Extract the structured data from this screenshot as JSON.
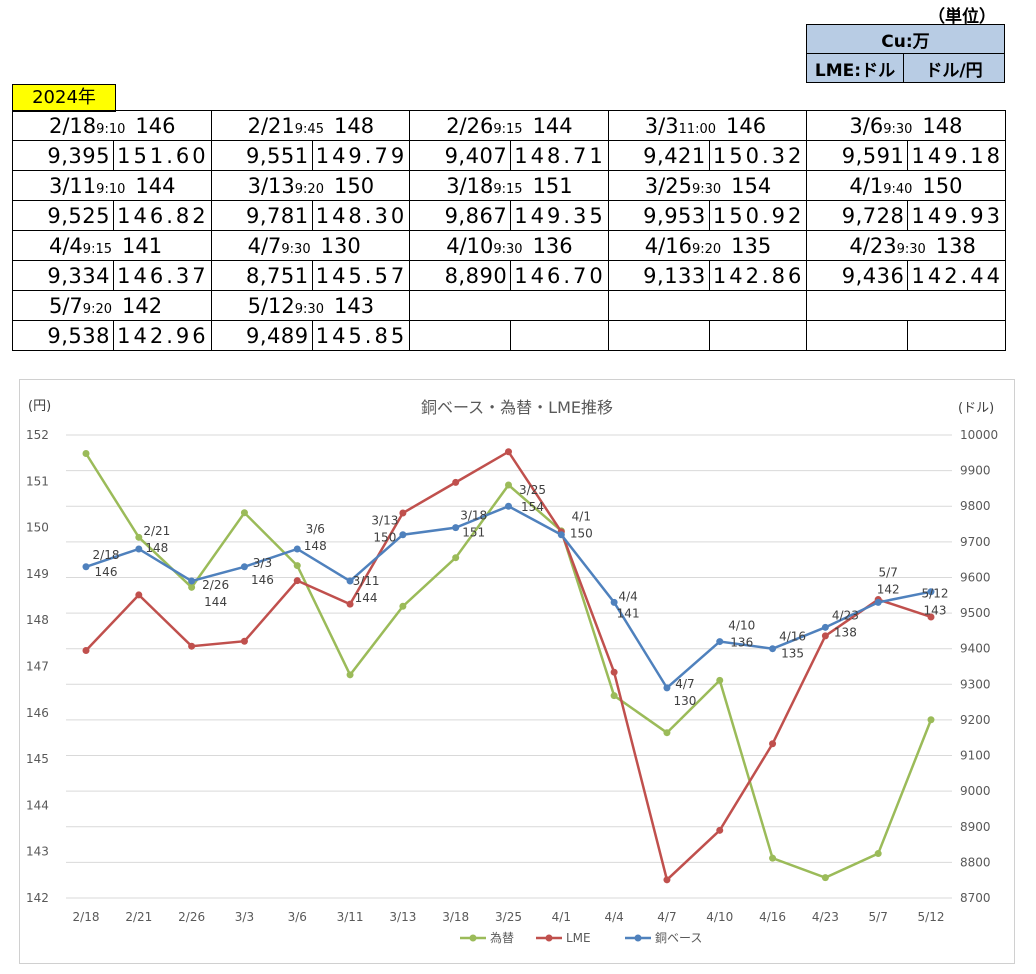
{
  "header": {
    "unit_label": "（単位）",
    "unit_top": "Cu:万",
    "unit_left": "LME:ドル",
    "unit_right": "ドル/円"
  },
  "year_label": "2024年",
  "rows": [
    [
      {
        "date": "2/18",
        "time": "9:10",
        "base": "146",
        "lme": "9,395",
        "fx": "151.60"
      },
      {
        "date": "2/21",
        "time": "9:45",
        "base": "148",
        "lme": "9,551",
        "fx": "149.79"
      },
      {
        "date": "2/26",
        "time": "9:15",
        "base": "144",
        "lme": "9,407",
        "fx": "148.71"
      },
      {
        "date": "3/3",
        "time": "11:00",
        "base": "146",
        "lme": "9,421",
        "fx": "150.32"
      },
      {
        "date": "3/6",
        "time": "9:30",
        "base": "148",
        "lme": "9,591",
        "fx": "149.18"
      }
    ],
    [
      {
        "date": "3/11",
        "time": "9:10",
        "base": "144",
        "lme": "9,525",
        "fx": "146.82"
      },
      {
        "date": "3/13",
        "time": "9:20",
        "base": "150",
        "lme": "9,781",
        "fx": "148.30"
      },
      {
        "date": "3/18",
        "time": "9:15",
        "base": "151",
        "lme": "9,867",
        "fx": "149.35"
      },
      {
        "date": "3/25",
        "time": "9:30",
        "base": "154",
        "lme": "9,953",
        "fx": "150.92"
      },
      {
        "date": "4/1",
        "time": "9:40",
        "base": "150",
        "lme": "9,728",
        "fx": "149.93"
      }
    ],
    [
      {
        "date": "4/4",
        "time": "9:15",
        "base": "141",
        "lme": "9,334",
        "fx": "146.37"
      },
      {
        "date": "4/7",
        "time": "9:30",
        "base": "130",
        "lme": "8,751",
        "fx": "145.57"
      },
      {
        "date": "4/10",
        "time": "9:30",
        "base": "136",
        "lme": "8,890",
        "fx": "146.70"
      },
      {
        "date": "4/16",
        "time": "9:20",
        "base": "135",
        "lme": "9,133",
        "fx": "142.86"
      },
      {
        "date": "4/23",
        "time": "9:30",
        "base": "138",
        "lme": "9,436",
        "fx": "142.44"
      }
    ],
    [
      {
        "date": "5/7",
        "time": "9:20",
        "base": "142",
        "lme": "9,538",
        "fx": "142.96"
      },
      {
        "date": "5/12",
        "time": "9:30",
        "base": "143",
        "lme": "9,489",
        "fx": "145.85"
      },
      {
        "date": "",
        "time": "",
        "base": "",
        "lme": "",
        "fx": ""
      },
      {
        "date": "",
        "time": "",
        "base": "",
        "lme": "",
        "fx": ""
      },
      {
        "date": "",
        "time": "",
        "base": "",
        "lme": "",
        "fx": ""
      }
    ]
  ],
  "chart_data": {
    "type": "line",
    "title": "銅ベース・為替・LME推移",
    "left_axis_label": "(円)",
    "right_axis_label": "(ドル)",
    "categories": [
      "2/18",
      "2/21",
      "2/26",
      "3/3",
      "3/6",
      "3/11",
      "3/13",
      "3/18",
      "3/25",
      "4/1",
      "4/4",
      "4/7",
      "4/10",
      "4/16",
      "4/23",
      "5/7",
      "5/12"
    ],
    "left_axis": {
      "min": 142,
      "max": 152,
      "ticks": [
        142,
        143,
        144,
        145,
        146,
        147,
        148,
        149,
        150,
        151,
        152
      ]
    },
    "right_axis": {
      "min": 8700,
      "max": 10000,
      "ticks": [
        8700,
        8800,
        8900,
        9000,
        9100,
        9200,
        9300,
        9400,
        9500,
        9600,
        9700,
        9800,
        9900,
        10000
      ]
    },
    "series": [
      {
        "name": "為替",
        "axis": "left",
        "color": "#9bbb59",
        "values": [
          151.6,
          149.79,
          148.71,
          150.32,
          149.18,
          146.82,
          148.3,
          149.35,
          150.92,
          149.93,
          146.37,
          145.57,
          146.7,
          142.86,
          142.44,
          142.96,
          145.85
        ]
      },
      {
        "name": "LME",
        "axis": "right",
        "color": "#c0504d",
        "values": [
          9395,
          9551,
          9407,
          9421,
          9591,
          9525,
          9781,
          9867,
          9953,
          9728,
          9334,
          8751,
          8890,
          9133,
          9436,
          9538,
          9489
        ]
      },
      {
        "name": "銅ベース",
        "axis": "right",
        "color": "#4f81bd",
        "values": [
          9630,
          9680,
          9590,
          9630,
          9680,
          9590,
          9720,
          9740,
          9800,
          9720,
          9530,
          9290,
          9420,
          9400,
          9460,
          9530,
          9560
        ]
      }
    ],
    "point_labels": [
      {
        "date": "2/18",
        "value": "146"
      },
      {
        "date": "2/21",
        "value": "148"
      },
      {
        "date": "2/26",
        "value": "144"
      },
      {
        "date": "3/3",
        "value": "146"
      },
      {
        "date": "3/6",
        "value": "148"
      },
      {
        "date": "3/11",
        "value": "144"
      },
      {
        "date": "3/13",
        "value": "150"
      },
      {
        "date": "3/18",
        "value": "151"
      },
      {
        "date": "3/25",
        "value": "154"
      },
      {
        "date": "4/1",
        "value": "150"
      },
      {
        "date": "4/4",
        "value": "141"
      },
      {
        "date": "4/7",
        "value": "130"
      },
      {
        "date": "4/10",
        "value": "136"
      },
      {
        "date": "4/16",
        "value": "135"
      },
      {
        "date": "4/23",
        "value": "138"
      },
      {
        "date": "5/7",
        "value": "142"
      },
      {
        "date": "5/12",
        "value": "143"
      }
    ],
    "legend_position": "bottom",
    "grid": true
  }
}
